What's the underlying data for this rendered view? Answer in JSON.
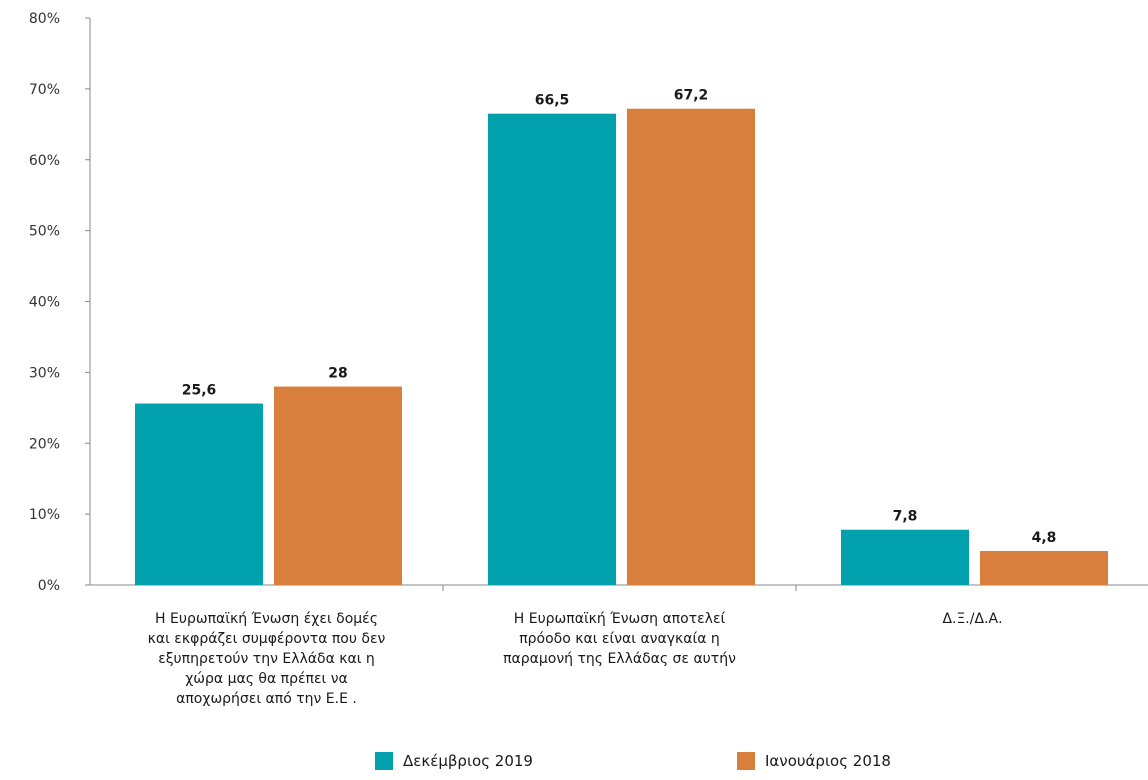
{
  "chart_data": {
    "type": "bar",
    "categories": [
      "Η Ευρωπαϊκή Ένωση έχει δομές και εκφράζει συμφέροντα που δεν εξυπηρετούν την Ελλάδα και η χώρα μας θα πρέπει να αποχωρήσει από την Ε.Ε .",
      "Η Ευρωπαϊκή Ένωση αποτελεί πρόοδο και είναι αναγκαία η παραμονή της Ελλάδας σε αυτήν",
      "Δ.Ξ./Δ.Α."
    ],
    "category_lines": [
      [
        "Η Ευρωπαϊκή Ένωση έχει δομές",
        "και εκφράζει συμφέροντα που δεν",
        "εξυπηρετούν την Ελλάδα και η",
        "χώρα μας θα πρέπει να",
        "αποχωρήσει από την Ε.Ε ."
      ],
      [
        "Η Ευρωπαϊκή Ένωση αποτελεί",
        "πρόοδο και είναι αναγκαία η",
        "παραμονή της Ελλάδας σε αυτήν"
      ],
      [
        "Δ.Ξ./Δ.Α."
      ]
    ],
    "series": [
      {
        "name": "Δεκέμβριος 2019",
        "color": "#00a0ac",
        "values": [
          25.6,
          66.5,
          7.8
        ],
        "labels": [
          "25,6",
          "66,5",
          "7,8"
        ]
      },
      {
        "name": "Ιανουάριος 2018",
        "color": "#d97f3d",
        "values": [
          28,
          67.2,
          4.8
        ],
        "labels": [
          "28",
          "67,2",
          "4,8"
        ]
      }
    ],
    "ylim": [
      0,
      80
    ],
    "yticks": [
      0,
      10,
      20,
      30,
      40,
      50,
      60,
      70,
      80
    ],
    "ytick_labels": [
      "0%",
      "10%",
      "20%",
      "30%",
      "40%",
      "50%",
      "60%",
      "70%",
      "80%"
    ],
    "xlabel": "",
    "ylabel": "",
    "title": "",
    "grid": false,
    "legend_position": "bottom"
  }
}
